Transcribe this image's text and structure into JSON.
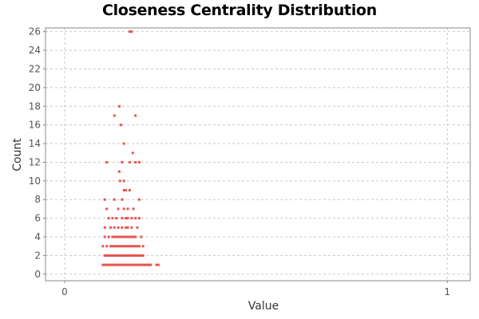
{
  "chart_data": {
    "type": "scatter",
    "title": "Closeness Centrality Distribution",
    "xlabel": "Value",
    "ylabel": "Count",
    "xlim": [
      -0.05,
      1.06
    ],
    "ylim": [
      -0.7,
      26.4
    ],
    "xticks": [
      0,
      1
    ],
    "yticks": [
      0,
      2,
      4,
      6,
      8,
      10,
      12,
      14,
      16,
      18,
      20,
      22,
      24,
      26
    ],
    "grid": true,
    "point_color": "#e8554e",
    "series": [
      {
        "points": [
          [
            0.17,
            26
          ],
          [
            0.175,
            26
          ],
          [
            0.143,
            18
          ],
          [
            0.185,
            17
          ],
          [
            0.13,
            17
          ],
          [
            0.147,
            16
          ],
          [
            0.155,
            14
          ],
          [
            0.178,
            13
          ],
          [
            0.11,
            12
          ],
          [
            0.15,
            12
          ],
          [
            0.17,
            12
          ],
          [
            0.185,
            12
          ],
          [
            0.195,
            12
          ],
          [
            0.143,
            11
          ],
          [
            0.145,
            10
          ],
          [
            0.155,
            10
          ],
          [
            0.155,
            9
          ],
          [
            0.16,
            9
          ],
          [
            0.17,
            9
          ],
          [
            0.105,
            8
          ],
          [
            0.13,
            8
          ],
          [
            0.15,
            8
          ],
          [
            0.195,
            8
          ],
          [
            0.11,
            7
          ],
          [
            0.14,
            7
          ],
          [
            0.155,
            7
          ],
          [
            0.165,
            7
          ],
          [
            0.18,
            7
          ],
          [
            0.115,
            6
          ],
          [
            0.125,
            6
          ],
          [
            0.135,
            6
          ],
          [
            0.15,
            6
          ],
          [
            0.16,
            6
          ],
          [
            0.165,
            6
          ],
          [
            0.175,
            6
          ],
          [
            0.185,
            6
          ],
          [
            0.195,
            6
          ],
          [
            0.105,
            5
          ],
          [
            0.12,
            5
          ],
          [
            0.13,
            5
          ],
          [
            0.14,
            5
          ],
          [
            0.15,
            5
          ],
          [
            0.16,
            5
          ],
          [
            0.165,
            5
          ],
          [
            0.175,
            5
          ],
          [
            0.19,
            5
          ],
          [
            0.105,
            4
          ],
          [
            0.115,
            4
          ],
          [
            0.125,
            4
          ],
          [
            0.13,
            4
          ],
          [
            0.135,
            4
          ],
          [
            0.14,
            4
          ],
          [
            0.145,
            4
          ],
          [
            0.15,
            4
          ],
          [
            0.155,
            4
          ],
          [
            0.16,
            4
          ],
          [
            0.165,
            4
          ],
          [
            0.17,
            4
          ],
          [
            0.175,
            4
          ],
          [
            0.18,
            4
          ],
          [
            0.185,
            4
          ],
          [
            0.2,
            4
          ],
          [
            0.1,
            3
          ],
          [
            0.11,
            3
          ],
          [
            0.12,
            3
          ],
          [
            0.125,
            3
          ],
          [
            0.13,
            3
          ],
          [
            0.135,
            3
          ],
          [
            0.14,
            3
          ],
          [
            0.145,
            3
          ],
          [
            0.15,
            3
          ],
          [
            0.155,
            3
          ],
          [
            0.16,
            3
          ],
          [
            0.165,
            3
          ],
          [
            0.17,
            3
          ],
          [
            0.175,
            3
          ],
          [
            0.18,
            3
          ],
          [
            0.185,
            3
          ],
          [
            0.19,
            3
          ],
          [
            0.195,
            3
          ],
          [
            0.205,
            3
          ],
          [
            0.105,
            2
          ],
          [
            0.11,
            2
          ],
          [
            0.115,
            2
          ],
          [
            0.12,
            2
          ],
          [
            0.125,
            2
          ],
          [
            0.13,
            2
          ],
          [
            0.135,
            2
          ],
          [
            0.14,
            2
          ],
          [
            0.145,
            2
          ],
          [
            0.15,
            2
          ],
          [
            0.155,
            2
          ],
          [
            0.16,
            2
          ],
          [
            0.165,
            2
          ],
          [
            0.17,
            2
          ],
          [
            0.175,
            2
          ],
          [
            0.18,
            2
          ],
          [
            0.185,
            2
          ],
          [
            0.19,
            2
          ],
          [
            0.195,
            2
          ],
          [
            0.2,
            2
          ],
          [
            0.205,
            2
          ],
          [
            0.1,
            1
          ],
          [
            0.105,
            1
          ],
          [
            0.11,
            1
          ],
          [
            0.115,
            1
          ],
          [
            0.12,
            1
          ],
          [
            0.125,
            1
          ],
          [
            0.13,
            1
          ],
          [
            0.135,
            1
          ],
          [
            0.14,
            1
          ],
          [
            0.145,
            1
          ],
          [
            0.15,
            1
          ],
          [
            0.155,
            1
          ],
          [
            0.16,
            1
          ],
          [
            0.165,
            1
          ],
          [
            0.17,
            1
          ],
          [
            0.175,
            1
          ],
          [
            0.18,
            1
          ],
          [
            0.185,
            1
          ],
          [
            0.19,
            1
          ],
          [
            0.195,
            1
          ],
          [
            0.2,
            1
          ],
          [
            0.205,
            1
          ],
          [
            0.21,
            1
          ],
          [
            0.215,
            1
          ],
          [
            0.22,
            1
          ],
          [
            0.225,
            1
          ],
          [
            0.24,
            1
          ],
          [
            0.245,
            1
          ]
        ]
      }
    ]
  }
}
